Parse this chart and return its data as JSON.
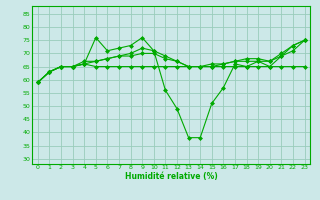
{
  "xlabel": "Humidité relative (%)",
  "bg_color": "#cce8e8",
  "grid_color": "#99ccbb",
  "line_color": "#00aa00",
  "xlim": [
    -0.5,
    23.5
  ],
  "ylim": [
    28,
    88
  ],
  "yticks": [
    30,
    35,
    40,
    45,
    50,
    55,
    60,
    65,
    70,
    75,
    80,
    85
  ],
  "xticks": [
    0,
    1,
    2,
    3,
    4,
    5,
    6,
    7,
    8,
    9,
    10,
    11,
    12,
    13,
    14,
    15,
    16,
    17,
    18,
    19,
    20,
    21,
    22,
    23
  ],
  "curves": [
    {
      "x": [
        0,
        1,
        2,
        3,
        4,
        5,
        6,
        7,
        8,
        9,
        10,
        11,
        12,
        13,
        14,
        15,
        16,
        17,
        18,
        19,
        20,
        21,
        22,
        23
      ],
      "y": [
        59,
        63,
        65,
        65,
        66,
        76,
        71,
        72,
        73,
        76,
        71,
        56,
        49,
        38,
        38,
        51,
        57,
        66,
        65,
        67,
        65,
        69,
        73,
        75
      ]
    },
    {
      "x": [
        0,
        1,
        2,
        3,
        4,
        5,
        6,
        7,
        8,
        9,
        10,
        11,
        12,
        13,
        14,
        15,
        16,
        17,
        18,
        19,
        20,
        21,
        22,
        23
      ],
      "y": [
        59,
        63,
        65,
        65,
        66,
        65,
        65,
        65,
        65,
        65,
        65,
        65,
        65,
        65,
        65,
        65,
        65,
        65,
        65,
        65,
        65,
        65,
        65,
        65
      ]
    },
    {
      "x": [
        0,
        1,
        2,
        3,
        4,
        5,
        6,
        7,
        8,
        9,
        10,
        11,
        12,
        13,
        14,
        15,
        16,
        17,
        18,
        19,
        20,
        21,
        22,
        23
      ],
      "y": [
        59,
        63,
        65,
        65,
        67,
        67,
        68,
        69,
        69,
        70,
        70,
        68,
        67,
        65,
        65,
        66,
        66,
        67,
        67,
        67,
        67,
        69,
        71,
        75
      ]
    },
    {
      "x": [
        0,
        1,
        2,
        3,
        4,
        5,
        6,
        7,
        8,
        9,
        10,
        11,
        12,
        13,
        14,
        15,
        16,
        17,
        18,
        19,
        20,
        21,
        22,
        23
      ],
      "y": [
        59,
        63,
        65,
        65,
        66,
        67,
        68,
        69,
        70,
        72,
        71,
        69,
        67,
        65,
        65,
        65,
        66,
        67,
        68,
        68,
        67,
        70,
        73,
        75
      ]
    }
  ]
}
